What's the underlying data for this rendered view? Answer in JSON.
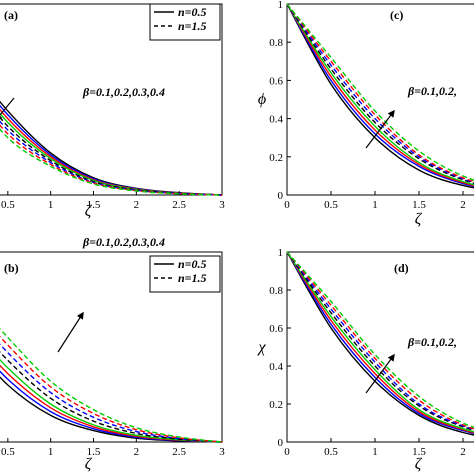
{
  "chart_data": [
    {
      "type": "line",
      "panel": "(a)",
      "xlabel": "ζ",
      "ylabel": "",
      "xlim": [
        0,
        3
      ],
      "ylim": [
        0,
        1
      ],
      "xticks": [
        "0.5",
        "1",
        "1.5",
        "2",
        "2.5",
        "3"
      ],
      "yticks": [],
      "legend": {
        "placement": "top-right",
        "entries": [
          {
            "label": "n=0.5",
            "style": "solid"
          },
          {
            "label": "n=1.5",
            "style": "dashed"
          }
        ]
      },
      "annotation": "β=0.1,0.2,0.3,0.4",
      "arrow": "down",
      "series": [
        {
          "color": "#000000",
          "style": "solid",
          "x": [
            0,
            0.5,
            1,
            1.5,
            2,
            2.5,
            3
          ],
          "y": [
            0.72,
            0.44,
            0.22,
            0.09,
            0.035,
            0.012,
            0.0
          ]
        },
        {
          "color": "#0000ff",
          "style": "solid",
          "x": [
            0,
            0.5,
            1,
            1.5,
            2,
            2.5,
            3
          ],
          "y": [
            0.7,
            0.42,
            0.21,
            0.085,
            0.033,
            0.011,
            0.0
          ]
        },
        {
          "color": "#ff0000",
          "style": "solid",
          "x": [
            0,
            0.5,
            1,
            1.5,
            2,
            2.5,
            3
          ],
          "y": [
            0.68,
            0.4,
            0.2,
            0.08,
            0.031,
            0.01,
            0.0
          ]
        },
        {
          "color": "#00cc00",
          "style": "solid",
          "x": [
            0,
            0.5,
            1,
            1.5,
            2,
            2.5,
            3
          ],
          "y": [
            0.66,
            0.38,
            0.19,
            0.076,
            0.029,
            0.009,
            0.0
          ]
        },
        {
          "color": "#000000",
          "style": "dashed",
          "x": [
            0,
            0.5,
            1,
            1.5,
            2,
            2.5,
            3
          ],
          "y": [
            0.64,
            0.36,
            0.18,
            0.07,
            0.027,
            0.009,
            0.0
          ]
        },
        {
          "color": "#0000ff",
          "style": "dashed",
          "x": [
            0,
            0.5,
            1,
            1.5,
            2,
            2.5,
            3
          ],
          "y": [
            0.62,
            0.34,
            0.17,
            0.066,
            0.025,
            0.008,
            0.0
          ]
        },
        {
          "color": "#ff0000",
          "style": "dashed",
          "x": [
            0,
            0.5,
            1,
            1.5,
            2,
            2.5,
            3
          ],
          "y": [
            0.6,
            0.32,
            0.16,
            0.062,
            0.023,
            0.007,
            0.0
          ]
        },
        {
          "color": "#00cc00",
          "style": "dashed",
          "x": [
            0,
            0.5,
            1,
            1.5,
            2,
            2.5,
            3
          ],
          "y": [
            0.58,
            0.3,
            0.15,
            0.058,
            0.021,
            0.006,
            0.0
          ]
        }
      ]
    },
    {
      "type": "line",
      "panel": "(c)",
      "xlabel": "ζ",
      "ylabel": "ϕ",
      "xlim": [
        0,
        3
      ],
      "ylim": [
        0,
        1
      ],
      "xticks": [
        "0",
        "0.5",
        "1",
        "1.5",
        "2"
      ],
      "yticks": [
        "0",
        "0.2",
        "0.4",
        "0.6",
        "0.8",
        "1"
      ],
      "annotation": "β=0.1,0.2,",
      "arrow": "up",
      "series": [
        {
          "color": "#000000",
          "style": "solid",
          "x": [
            0,
            0.5,
            1,
            1.5,
            2,
            2.5,
            3
          ],
          "y": [
            1,
            0.58,
            0.3,
            0.13,
            0.05,
            0.015,
            0.0
          ]
        },
        {
          "color": "#0000ff",
          "style": "solid",
          "x": [
            0,
            0.5,
            1,
            1.5,
            2,
            2.5,
            3
          ],
          "y": [
            1,
            0.6,
            0.32,
            0.15,
            0.06,
            0.018,
            0.0
          ]
        },
        {
          "color": "#ff0000",
          "style": "solid",
          "x": [
            0,
            0.5,
            1,
            1.5,
            2,
            2.5,
            3
          ],
          "y": [
            1,
            0.62,
            0.34,
            0.16,
            0.065,
            0.02,
            0.0
          ]
        },
        {
          "color": "#00cc00",
          "style": "solid",
          "x": [
            0,
            0.5,
            1,
            1.5,
            2,
            2.5,
            3
          ],
          "y": [
            1,
            0.64,
            0.36,
            0.17,
            0.07,
            0.022,
            0.0
          ]
        },
        {
          "color": "#000000",
          "style": "dashed",
          "x": [
            0,
            0.5,
            1,
            1.5,
            2,
            2.5,
            3
          ],
          "y": [
            1,
            0.66,
            0.38,
            0.19,
            0.08,
            0.025,
            0.0
          ]
        },
        {
          "color": "#0000ff",
          "style": "dashed",
          "x": [
            0,
            0.5,
            1,
            1.5,
            2,
            2.5,
            3
          ],
          "y": [
            1,
            0.68,
            0.4,
            0.2,
            0.085,
            0.027,
            0.0
          ]
        },
        {
          "color": "#ff0000",
          "style": "dashed",
          "x": [
            0,
            0.5,
            1,
            1.5,
            2,
            2.5,
            3
          ],
          "y": [
            1,
            0.7,
            0.42,
            0.21,
            0.09,
            0.03,
            0.0
          ]
        },
        {
          "color": "#00cc00",
          "style": "dashed",
          "x": [
            0,
            0.5,
            1,
            1.5,
            2,
            2.5,
            3
          ],
          "y": [
            1,
            0.72,
            0.44,
            0.23,
            0.1,
            0.033,
            0.0
          ]
        }
      ]
    },
    {
      "type": "line",
      "panel": "(b)",
      "xlabel": "ζ",
      "ylabel": "",
      "xlim": [
        0,
        3
      ],
      "ylim": [
        0,
        1
      ],
      "xticks": [
        "0.5",
        "1",
        "1.5",
        "2",
        "2.5",
        "3"
      ],
      "yticks": [],
      "legend": {
        "placement": "top-right",
        "entries": [
          {
            "label": "n=0.5",
            "style": "solid"
          },
          {
            "label": "n=1.5",
            "style": "dashed"
          }
        ]
      },
      "annotation": "β=0.1,0.2,0.3,0.4",
      "arrow": "up",
      "series": [
        {
          "color": "#000000",
          "style": "solid",
          "x": [
            0,
            0.5,
            1,
            1.5,
            2,
            2.5,
            3
          ],
          "y": [
            0.55,
            0.3,
            0.14,
            0.06,
            0.02,
            0.006,
            0.0
          ]
        },
        {
          "color": "#0000ff",
          "style": "solid",
          "x": [
            0,
            0.5,
            1,
            1.5,
            2,
            2.5,
            3
          ],
          "y": [
            0.58,
            0.33,
            0.16,
            0.07,
            0.025,
            0.008,
            0.0
          ]
        },
        {
          "color": "#ff0000",
          "style": "solid",
          "x": [
            0,
            0.5,
            1,
            1.5,
            2,
            2.5,
            3
          ],
          "y": [
            0.61,
            0.36,
            0.18,
            0.08,
            0.03,
            0.01,
            0.0
          ]
        },
        {
          "color": "#00cc00",
          "style": "solid",
          "x": [
            0,
            0.5,
            1,
            1.5,
            2,
            2.5,
            3
          ],
          "y": [
            0.64,
            0.39,
            0.2,
            0.09,
            0.035,
            0.012,
            0.0
          ]
        },
        {
          "color": "#000000",
          "style": "dashed",
          "x": [
            0,
            0.5,
            1,
            1.5,
            2,
            2.5,
            3
          ],
          "y": [
            0.68,
            0.43,
            0.23,
            0.11,
            0.045,
            0.015,
            0.0
          ]
        },
        {
          "color": "#0000ff",
          "style": "dashed",
          "x": [
            0,
            0.5,
            1,
            1.5,
            2,
            2.5,
            3
          ],
          "y": [
            0.72,
            0.47,
            0.26,
            0.13,
            0.055,
            0.018,
            0.0
          ]
        },
        {
          "color": "#ff0000",
          "style": "dashed",
          "x": [
            0,
            0.5,
            1,
            1.5,
            2,
            2.5,
            3
          ],
          "y": [
            0.76,
            0.51,
            0.29,
            0.15,
            0.065,
            0.022,
            0.0
          ]
        },
        {
          "color": "#00cc00",
          "style": "dashed",
          "x": [
            0,
            0.5,
            1,
            1.5,
            2,
            2.5,
            3
          ],
          "y": [
            0.8,
            0.55,
            0.32,
            0.17,
            0.075,
            0.026,
            0.0
          ]
        }
      ]
    },
    {
      "type": "line",
      "panel": "(d)",
      "xlabel": "ζ",
      "ylabel": "χ",
      "xlim": [
        0,
        3
      ],
      "ylim": [
        0,
        1
      ],
      "xticks": [
        "0",
        "0.5",
        "1",
        "1.5",
        "2"
      ],
      "yticks": [
        "0",
        "0.2",
        "0.4",
        "0.6",
        "0.8",
        "1"
      ],
      "annotation": "β=0.1,0.2,",
      "arrow": "up",
      "series": [
        {
          "color": "#000000",
          "style": "solid",
          "x": [
            0,
            0.5,
            1,
            1.5,
            2,
            2.5,
            3
          ],
          "y": [
            1,
            0.6,
            0.32,
            0.14,
            0.05,
            0.015,
            0.0
          ]
        },
        {
          "color": "#0000ff",
          "style": "solid",
          "x": [
            0,
            0.5,
            1,
            1.5,
            2,
            2.5,
            3
          ],
          "y": [
            1,
            0.62,
            0.34,
            0.15,
            0.06,
            0.018,
            0.0
          ]
        },
        {
          "color": "#ff0000",
          "style": "solid",
          "x": [
            0,
            0.5,
            1,
            1.5,
            2,
            2.5,
            3
          ],
          "y": [
            1,
            0.64,
            0.36,
            0.16,
            0.065,
            0.02,
            0.0
          ]
        },
        {
          "color": "#00cc00",
          "style": "solid",
          "x": [
            0,
            0.5,
            1,
            1.5,
            2,
            2.5,
            3
          ],
          "y": [
            1,
            0.66,
            0.38,
            0.17,
            0.07,
            0.022,
            0.0
          ]
        },
        {
          "color": "#000000",
          "style": "dashed",
          "x": [
            0,
            0.5,
            1,
            1.5,
            2,
            2.5,
            3
          ],
          "y": [
            1,
            0.68,
            0.4,
            0.19,
            0.08,
            0.025,
            0.0
          ]
        },
        {
          "color": "#0000ff",
          "style": "dashed",
          "x": [
            0,
            0.5,
            1,
            1.5,
            2,
            2.5,
            3
          ],
          "y": [
            1,
            0.7,
            0.42,
            0.2,
            0.085,
            0.027,
            0.0
          ]
        },
        {
          "color": "#ff0000",
          "style": "dashed",
          "x": [
            0,
            0.5,
            1,
            1.5,
            2,
            2.5,
            3
          ],
          "y": [
            1,
            0.72,
            0.44,
            0.22,
            0.09,
            0.03,
            0.0
          ]
        },
        {
          "color": "#00cc00",
          "style": "dashed",
          "x": [
            0,
            0.5,
            1,
            1.5,
            2,
            2.5,
            3
          ],
          "y": [
            1,
            0.74,
            0.46,
            0.24,
            0.1,
            0.033,
            0.0
          ]
        }
      ]
    }
  ]
}
